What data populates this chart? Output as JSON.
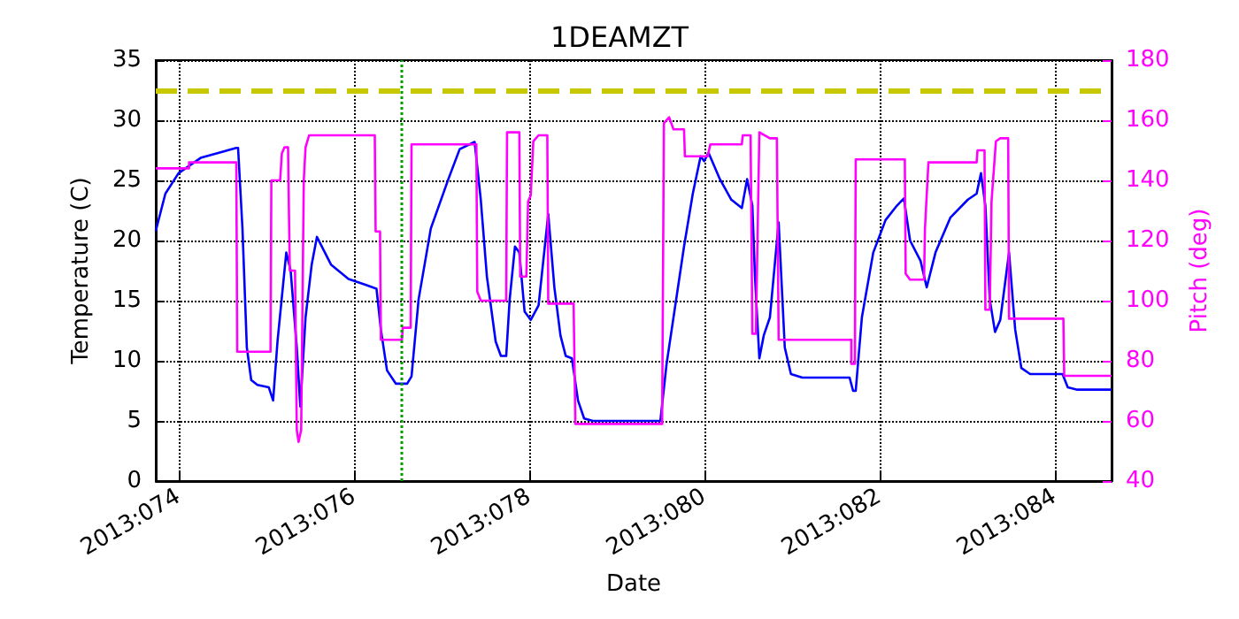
{
  "chart_data": {
    "type": "line",
    "title": "1DEAMZT",
    "xlabel": "Date",
    "ylabel": "Temperature (C)",
    "y2label": "Pitch (deg)",
    "xlim": [
      "2013-03-14T17:46",
      "2013-03-25T15:36"
    ],
    "xticks": [
      {
        "value": "2013-03-15",
        "label": "2013:074"
      },
      {
        "value": "2013-03-17",
        "label": "2013:076"
      },
      {
        "value": "2013-03-19",
        "label": "2013:078"
      },
      {
        "value": "2013-03-21",
        "label": "2013:080"
      },
      {
        "value": "2013-03-23",
        "label": "2013:082"
      },
      {
        "value": "2013-03-25",
        "label": "2013:084"
      }
    ],
    "ylim": [
      0,
      35
    ],
    "yticks": [
      0,
      5,
      10,
      15,
      20,
      25,
      30,
      35
    ],
    "y2lim": [
      40,
      180
    ],
    "y2ticks": [
      40,
      60,
      80,
      100,
      120,
      140,
      160,
      180
    ],
    "grid": true,
    "line_style": "solid",
    "series": [
      {
        "color": "#0000ff",
        "x": [
          "2013-03-14T17:46",
          "2013-03-14T20:24",
          "2013-03-15T00:00",
          "2013-03-15T06:14",
          "2013-03-15T15:50",
          "2013-03-15T16:19",
          "2013-03-15T17:31",
          "2013-03-15T18:43",
          "2013-03-15T19:55",
          "2013-03-15T21:36",
          "2013-03-16T00:43",
          "2013-03-16T01:55",
          "2013-03-16T03:07",
          "2013-03-16T05:31",
          "2013-03-16T06:43",
          "2013-03-16T08:24",
          "2013-03-16T09:22",
          "2013-03-16T10:48",
          "2013-03-16T12:29",
          "2013-03-16T13:55",
          "2013-03-16T17:46",
          "2013-03-16T22:34",
          "2013-03-17T03:22",
          "2013-03-17T06:14",
          "2013-03-17T07:26",
          "2013-03-17T09:07",
          "2013-03-17T11:31",
          "2013-03-17T14:38",
          "2013-03-17T15:50",
          "2013-03-17T17:46",
          "2013-03-17T21:07",
          "2013-03-18T01:55",
          "2013-03-18T05:02",
          "2013-03-18T09:07",
          "2013-03-18T10:48",
          "2013-03-18T12:29",
          "2013-03-18T14:53",
          "2013-03-18T16:19",
          "2013-03-18T17:46",
          "2013-03-18T18:43",
          "2013-03-18T20:10",
          "2013-03-18T21:22",
          "2013-03-18T22:48",
          "2013-03-19T00:29",
          "2013-03-19T02:38",
          "2013-03-19T05:17",
          "2013-03-19T06:58",
          "2013-03-19T08:38",
          "2013-03-19T10:05",
          "2013-03-19T11:46",
          "2013-03-19T13:26",
          "2013-03-19T15:07",
          "2013-03-19T17:31",
          "2013-03-20T12:00",
          "2013-03-20T13:41",
          "2013-03-20T16:05",
          "2013-03-20T18:29",
          "2013-03-20T20:53",
          "2013-03-20T23:02",
          "2013-03-21T00:00",
          "2013-03-21T01:12",
          "2013-03-21T04:19",
          "2013-03-21T07:26",
          "2013-03-21T10:19",
          "2013-03-21T11:46",
          "2013-03-21T13:12",
          "2013-03-21T13:55",
          "2013-03-21T15:07",
          "2013-03-21T16:19",
          "2013-03-21T18:00",
          "2013-03-21T20:24",
          "2013-03-21T22:05",
          "2013-03-21T23:46",
          "2013-03-22T02:53",
          "2013-03-22T15:50",
          "2013-03-22T16:48",
          "2013-03-22T17:31",
          "2013-03-22T19:12",
          "2013-03-22T22:19",
          "2013-03-23T01:41",
          "2013-03-23T04:48",
          "2013-03-23T06:43",
          "2013-03-23T08:24",
          "2013-03-23T11:17",
          "2013-03-23T12:58",
          "2013-03-23T15:22",
          "2013-03-23T19:26",
          "2013-03-24T00:14",
          "2013-03-24T02:38",
          "2013-03-24T03:50",
          "2013-03-24T05:02",
          "2013-03-24T06:14",
          "2013-03-24T07:41",
          "2013-03-24T09:07",
          "2013-03-24T11:31",
          "2013-03-24T13:12",
          "2013-03-24T14:53",
          "2013-03-24T17:17",
          "2013-03-25T02:10",
          "2013-03-25T03:36",
          "2013-03-25T06:14",
          "2013-03-25T15:36"
        ],
        "values": [
          20.8,
          23.9,
          25.6,
          26.9,
          27.7,
          27.7,
          21.0,
          11.1,
          8.4,
          8.0,
          7.8,
          6.7,
          11.6,
          19.0,
          17.5,
          11.1,
          6.2,
          13.6,
          18.0,
          20.3,
          18.0,
          16.8,
          16.3,
          16.0,
          12.6,
          9.2,
          8.1,
          8.1,
          8.7,
          15.1,
          21.0,
          25.1,
          27.6,
          28.2,
          23.4,
          17.0,
          11.6,
          10.4,
          10.4,
          15.1,
          19.5,
          19.0,
          14.1,
          13.4,
          14.6,
          22.2,
          16.1,
          12.1,
          10.4,
          10.2,
          6.7,
          5.2,
          5.0,
          5.0,
          9.7,
          14.6,
          19.5,
          23.9,
          27.0,
          26.6,
          27.3,
          25.1,
          23.4,
          22.7,
          25.1,
          22.9,
          17.0,
          10.2,
          12.1,
          13.6,
          21.5,
          11.1,
          8.9,
          8.6,
          8.6,
          7.5,
          7.5,
          13.6,
          19.0,
          21.7,
          22.9,
          23.5,
          20.0,
          18.3,
          16.1,
          19.0,
          21.9,
          23.4,
          23.9,
          25.6,
          22.9,
          15.1,
          12.4,
          13.4,
          19.0,
          12.6,
          9.4,
          8.9,
          8.9,
          7.8,
          7.6,
          7.6
        ]
      },
      {
        "color": "#ff00ff",
        "axis": "y2",
        "x": [
          "2013-03-14T17:46",
          "2013-03-15T02:53",
          "2013-03-15T02:53",
          "2013-03-15T15:50",
          "2013-03-15T16:05",
          "2013-03-16T01:12",
          "2013-03-16T01:26",
          "2013-03-16T03:50",
          "2013-03-16T04:19",
          "2013-03-16T05:02",
          "2013-03-16T06:00",
          "2013-03-16T06:29",
          "2013-03-16T07:55",
          "2013-03-16T08:24",
          "2013-03-16T08:53",
          "2013-03-16T09:36",
          "2013-03-16T10:19",
          "2013-03-16T10:48",
          "2013-03-16T11:46",
          "2013-03-17T05:46",
          "2013-03-17T06:00",
          "2013-03-17T07:12",
          "2013-03-17T07:26",
          "2013-03-17T13:12",
          "2013-03-17T13:26",
          "2013-03-17T15:36",
          "2013-03-17T15:50",
          "2013-03-18T09:36",
          "2013-03-18T09:50",
          "2013-03-18T10:48",
          "2013-03-18T17:46",
          "2013-03-18T18:00",
          "2013-03-18T21:22",
          "2013-03-18T21:36",
          "2013-03-18T23:17",
          "2013-03-18T23:46",
          "2013-03-19T00:29",
          "2013-03-19T01:12",
          "2013-03-19T02:38",
          "2013-03-19T05:02",
          "2013-03-19T05:17",
          "2013-03-19T12:14",
          "2013-03-19T12:43",
          "2013-03-20T12:29",
          "2013-03-20T12:58",
          "2013-03-20T14:24",
          "2013-03-20T15:36",
          "2013-03-20T18:29",
          "2013-03-20T18:43",
          "2013-03-21T00:58",
          "2013-03-21T01:41",
          "2013-03-21T10:19",
          "2013-03-21T10:34",
          "2013-03-21T12:43",
          "2013-03-21T13:12",
          "2013-03-21T14:10",
          "2013-03-21T15:07",
          "2013-03-21T18:00",
          "2013-03-21T19:55",
          "2013-03-21T20:24",
          "2013-03-22T16:19",
          "2013-03-22T16:19",
          "2013-03-22T17:17",
          "2013-03-22T17:31",
          "2013-03-23T06:58",
          "2013-03-23T07:12",
          "2013-03-23T08:24",
          "2013-03-23T12:14",
          "2013-03-23T12:29",
          "2013-03-23T13:26",
          "2013-03-24T02:38",
          "2013-03-24T02:53",
          "2013-03-24T04:48",
          "2013-03-24T05:02",
          "2013-03-24T06:14",
          "2013-03-24T06:43",
          "2013-03-24T07:55",
          "2013-03-24T09:07",
          "2013-03-24T11:17",
          "2013-03-24T11:31",
          "2013-03-25T02:24",
          "2013-03-25T02:38",
          "2013-03-25T15:36"
        ],
        "values": [
          144,
          144,
          146,
          146,
          83,
          83,
          140,
          140,
          149,
          151,
          151,
          110,
          110,
          57,
          53,
          57,
          140,
          151,
          155,
          155,
          123,
          123,
          87,
          87,
          91,
          91,
          152,
          152,
          103,
          100,
          100,
          156,
          156,
          108,
          108,
          133,
          135,
          153,
          155,
          155,
          99,
          99,
          59,
          59,
          159,
          161,
          157,
          157,
          148,
          148,
          152,
          152,
          155,
          155,
          89,
          89,
          156,
          154,
          154,
          87,
          87,
          79,
          79,
          147,
          147,
          109,
          107,
          107,
          124,
          146,
          146,
          150,
          150,
          97,
          97,
          133,
          153,
          154,
          154,
          94,
          94,
          75,
          75
        ]
      }
    ],
    "ref_lines": [
      {
        "axis": "y",
        "value": 32.5,
        "color": "#c8c800",
        "line_style": "dashed"
      },
      {
        "axis": "x",
        "value": "2013-03-17T13:12",
        "color": "#00a000",
        "line_style": "dotted"
      }
    ]
  }
}
